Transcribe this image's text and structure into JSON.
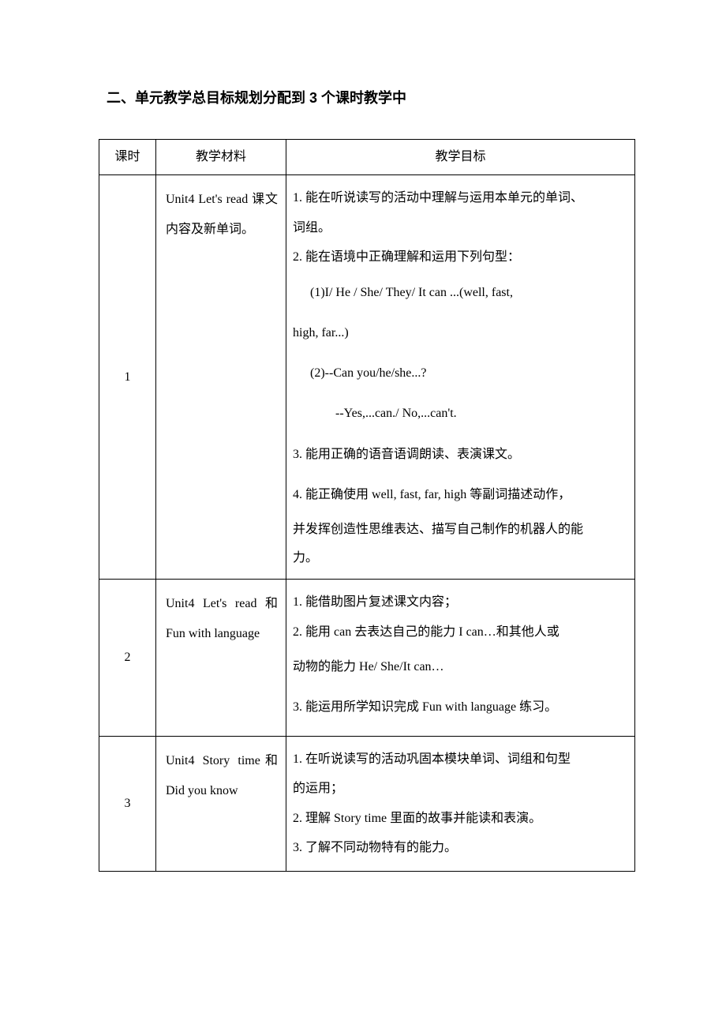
{
  "heading": "二、单元教学总目标规划分配到 3 个课时教学中",
  "table": {
    "headers": [
      "课时",
      "教学材料",
      "教学目标"
    ],
    "rows": [
      {
        "lesson": "1",
        "material_parts": [
          {
            "en": "Unit4 Let's read ",
            "cn": "课文内容及新单词。"
          }
        ],
        "goals": [
          {
            "cls": "goal-line",
            "text": "1. 能在听说读写的活动中理解与运用本单元的单词、"
          },
          {
            "cls": "goal-line",
            "text": "词组。"
          },
          {
            "cls": "goal-line",
            "text": "2. 能在语境中正确理解和运用下列句型："
          },
          {
            "cls": "goal-line-tall",
            "en": true,
            "indent": "indent1",
            "text": "(1)I/ He / She/ They/ It can ...(well, fast,"
          },
          {
            "cls": "goal-line-tall",
            "en": true,
            "text": "high, far...)"
          },
          {
            "cls": "goal-line-tall",
            "en": true,
            "indent": "indent1",
            "text": "(2)--Can you/he/she...?"
          },
          {
            "cls": "goal-line-tall",
            "en": true,
            "indent": "indent2",
            "text": "--Yes,...can./ No,...can't."
          },
          {
            "cls": "goal-line-tall",
            "text": "3. 能用正确的语音语调朗读、表演课文。"
          },
          {
            "cls": "goal-line-tall",
            "mixed": [
              {
                "t": "4. 能正确使用 "
              },
              {
                "t": "well, fast, far, high",
                "en": true
              },
              {
                "t": " 等副词描述动作，"
              }
            ]
          },
          {
            "cls": "goal-line",
            "text": "并发挥创造性思维表达、描写自己制作的机器人的能"
          },
          {
            "cls": "goal-line-short",
            "text": "力。"
          }
        ]
      },
      {
        "lesson": "2",
        "material_parts": [
          {
            "en": "Unit4 Let's read ",
            "cn": "和 "
          },
          {
            "en": "Fun with language"
          }
        ],
        "goals": [
          {
            "cls": "goal-line",
            "text": "1.  能借助图片复述课文内容；"
          },
          {
            "cls": "goal-line",
            "mixed": [
              {
                "t": "2.  能用 "
              },
              {
                "t": "can",
                "en": true
              },
              {
                "t": " 去表达自己的能力 "
              },
              {
                "t": "I can",
                "en": true
              },
              {
                "t": "…和其他人或"
              }
            ]
          },
          {
            "cls": "goal-line-tall",
            "mixed": [
              {
                "t": "动物的能力 "
              },
              {
                "t": "He/ She/It can",
                "en": true
              },
              {
                "t": "…"
              }
            ]
          },
          {
            "cls": "goal-line-tall",
            "mixed": [
              {
                "t": "3.  能运用所学知识完成 "
              },
              {
                "t": "Fun with language",
                "en": true
              },
              {
                "t": " 练习。"
              }
            ]
          }
        ]
      },
      {
        "lesson": "3",
        "material_parts": [
          {
            "en": "Unit4  Story  time",
            "cn": "和 "
          },
          {
            "en": "Did you know"
          }
        ],
        "goals": [
          {
            "cls": "goal-line",
            "text": "1.  在听说读写的活动巩固本模块单词、词组和句型"
          },
          {
            "cls": "goal-line",
            "text": "的运用；"
          },
          {
            "cls": "goal-line",
            "mixed": [
              {
                "t": "2.  理解 "
              },
              {
                "t": "Story time",
                "en": true
              },
              {
                "t": " 里面的故事并能读和表演。"
              }
            ]
          },
          {
            "cls": "goal-line",
            "text": "3. 了解不同动物特有的能力。"
          }
        ]
      }
    ]
  }
}
